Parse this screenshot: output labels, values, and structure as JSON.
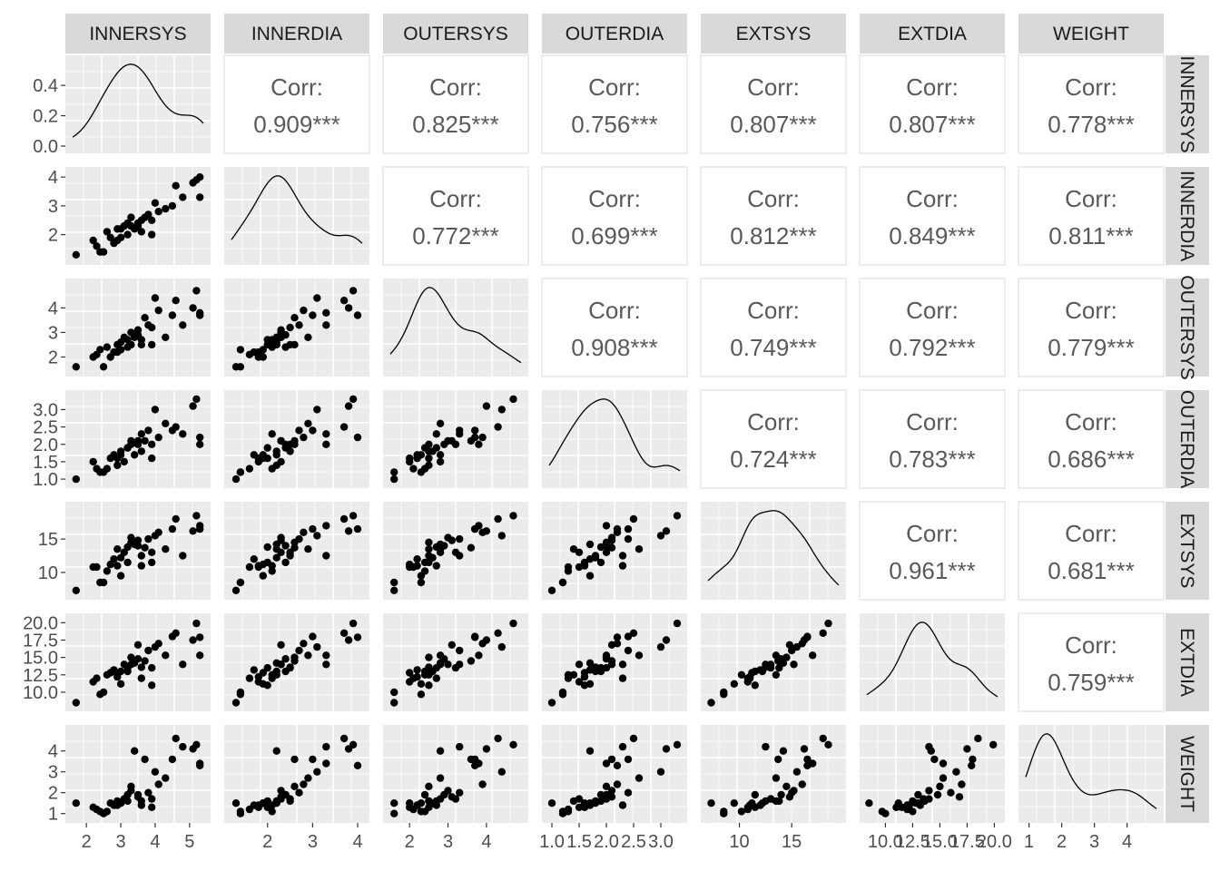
{
  "chart_data": {
    "type": "scatter-matrix",
    "variables": [
      "INNERSYS",
      "INNERDIA",
      "OUTERSYS",
      "OUTERDIA",
      "EXTSYS",
      "EXTDIA",
      "WEIGHT"
    ],
    "corr_label": "Corr:",
    "correlations": [
      [
        "",
        "0.909***",
        "0.825***",
        "0.756***",
        "0.807***",
        "0.807***",
        "0.778***"
      ],
      [
        "",
        "",
        "0.772***",
        "0.699***",
        "0.812***",
        "0.849***",
        "0.811***"
      ],
      [
        "",
        "",
        "",
        "0.908***",
        "0.749***",
        "0.792***",
        "0.779***"
      ],
      [
        "",
        "",
        "",
        "",
        "0.724***",
        "0.783***",
        "0.686***"
      ],
      [
        "",
        "",
        "",
        "",
        "",
        "0.961***",
        "0.681***"
      ],
      [
        "",
        "",
        "",
        "",
        "",
        "",
        "0.759***"
      ]
    ],
    "ranges": [
      [
        1.6,
        5.4
      ],
      [
        1.2,
        4.1
      ],
      [
        1.5,
        4.9
      ],
      [
        0.95,
        3.35
      ],
      [
        7.0,
        19.5
      ],
      [
        8.3,
        20.3
      ],
      [
        0.9,
        4.9
      ]
    ],
    "x_ticks": [
      [
        "2",
        "3",
        "4",
        "5"
      ],
      [
        "2",
        "3",
        "4"
      ],
      [
        "2",
        "3",
        "4"
      ],
      [
        "1.0",
        "1.5",
        "2.0",
        "2.5",
        "3.0"
      ],
      [
        "10",
        "15"
      ],
      [
        "10.0",
        "12.5",
        "15.0",
        "17.5",
        "20.0"
      ],
      [
        "1",
        "2",
        "3",
        "4"
      ]
    ],
    "y_ticks": [
      [
        "0.0",
        "0.2",
        "0.4"
      ],
      [
        "2",
        "3",
        "4"
      ],
      [
        "2",
        "3",
        "4"
      ],
      [
        "1.0",
        "1.5",
        "2.0",
        "2.5",
        "3.0"
      ],
      [
        "10",
        "15"
      ],
      [
        "10.0",
        "12.5",
        "15.0",
        "17.5",
        "20.0"
      ],
      [
        "1",
        "2",
        "3",
        "4"
      ]
    ],
    "density_ylim": [
      0,
      0.55
    ],
    "points": [
      [
        1.7,
        1.3,
        1.6,
        1.0,
        7.3,
        8.5,
        1.5
      ],
      [
        2.2,
        1.8,
        2.0,
        1.5,
        10.8,
        11.5,
        1.3
      ],
      [
        2.3,
        1.6,
        2.1,
        1.3,
        10.8,
        12.0,
        1.2
      ],
      [
        2.4,
        1.4,
        2.3,
        1.2,
        8.5,
        9.7,
        1.1
      ],
      [
        2.5,
        1.4,
        1.6,
        1.2,
        8.5,
        10.0,
        1.0
      ],
      [
        2.6,
        2.1,
        2.4,
        1.3,
        10.2,
        12.5,
        1.1
      ],
      [
        2.7,
        1.9,
        2.0,
        1.6,
        11.2,
        12.8,
        1.5
      ],
      [
        2.8,
        1.7,
        2.2,
        1.7,
        12.0,
        13.2,
        1.4
      ],
      [
        2.9,
        2.2,
        2.5,
        1.4,
        13.5,
        12.5,
        1.6
      ],
      [
        3.0,
        1.9,
        2.3,
        1.7,
        9.5,
        11.2,
        1.5
      ],
      [
        3.1,
        2.3,
        2.8,
        1.5,
        13.0,
        14.0,
        1.7
      ],
      [
        3.2,
        2.4,
        2.4,
        1.9,
        11.5,
        13.0,
        1.9
      ],
      [
        3.3,
        2.6,
        2.5,
        2.0,
        14.5,
        15.0,
        2.3
      ],
      [
        3.4,
        2.2,
        2.8,
        1.7,
        14.2,
        14.2,
        4.0
      ],
      [
        3.5,
        2.3,
        3.1,
        2.1,
        14.8,
        16.8,
        1.8
      ],
      [
        3.6,
        2.5,
        2.5,
        1.8,
        12.5,
        13.6,
        1.6
      ],
      [
        3.6,
        2.1,
        2.7,
        2.3,
        11.0,
        12.0,
        1.4
      ],
      [
        3.7,
        2.6,
        3.6,
        2.1,
        13.7,
        14.5,
        3.6
      ],
      [
        3.8,
        2.7,
        3.3,
        2.4,
        15.0,
        16.0,
        2.0
      ],
      [
        3.9,
        2.0,
        2.5,
        1.6,
        11.5,
        11.0,
        1.3
      ],
      [
        3.9,
        2.5,
        3.2,
        2.0,
        13.0,
        13.5,
        1.7
      ],
      [
        4.0,
        3.1,
        4.4,
        3.0,
        15.5,
        16.5,
        3.0
      ],
      [
        4.1,
        2.8,
        3.9,
        2.2,
        16.0,
        17.0,
        2.4
      ],
      [
        4.3,
        2.9,
        2.8,
        2.6,
        13.5,
        15.3,
        2.7
      ],
      [
        4.5,
        3.0,
        3.7,
        2.4,
        16.5,
        18.0,
        3.6
      ],
      [
        4.6,
        3.7,
        4.3,
        2.5,
        18.0,
        18.5,
        4.6
      ],
      [
        4.8,
        3.3,
        3.3,
        2.3,
        12.5,
        14.0,
        4.2
      ],
      [
        5.1,
        3.8,
        4.0,
        3.1,
        16.2,
        17.5,
        4.1
      ],
      [
        5.2,
        3.9,
        4.7,
        3.3,
        18.5,
        19.9,
        4.3
      ],
      [
        5.3,
        3.3,
        3.8,
        2.0,
        17.0,
        15.3,
        3.4
      ],
      [
        5.3,
        4.0,
        3.7,
        2.2,
        16.5,
        17.9,
        3.3
      ],
      [
        3.5,
        2.4,
        2.9,
        2.0,
        14.0,
        14.8,
        1.9
      ],
      [
        3.2,
        2.0,
        2.7,
        1.9,
        13.8,
        13.5,
        1.6
      ],
      [
        2.9,
        1.8,
        2.2,
        1.6,
        11.0,
        12.2,
        1.4
      ],
      [
        3.3,
        2.3,
        3.0,
        2.1,
        15.2,
        14.0,
        2.1
      ],
      [
        3.0,
        2.2,
        2.6,
        1.8,
        12.2,
        13.0,
        1.5
      ]
    ]
  }
}
